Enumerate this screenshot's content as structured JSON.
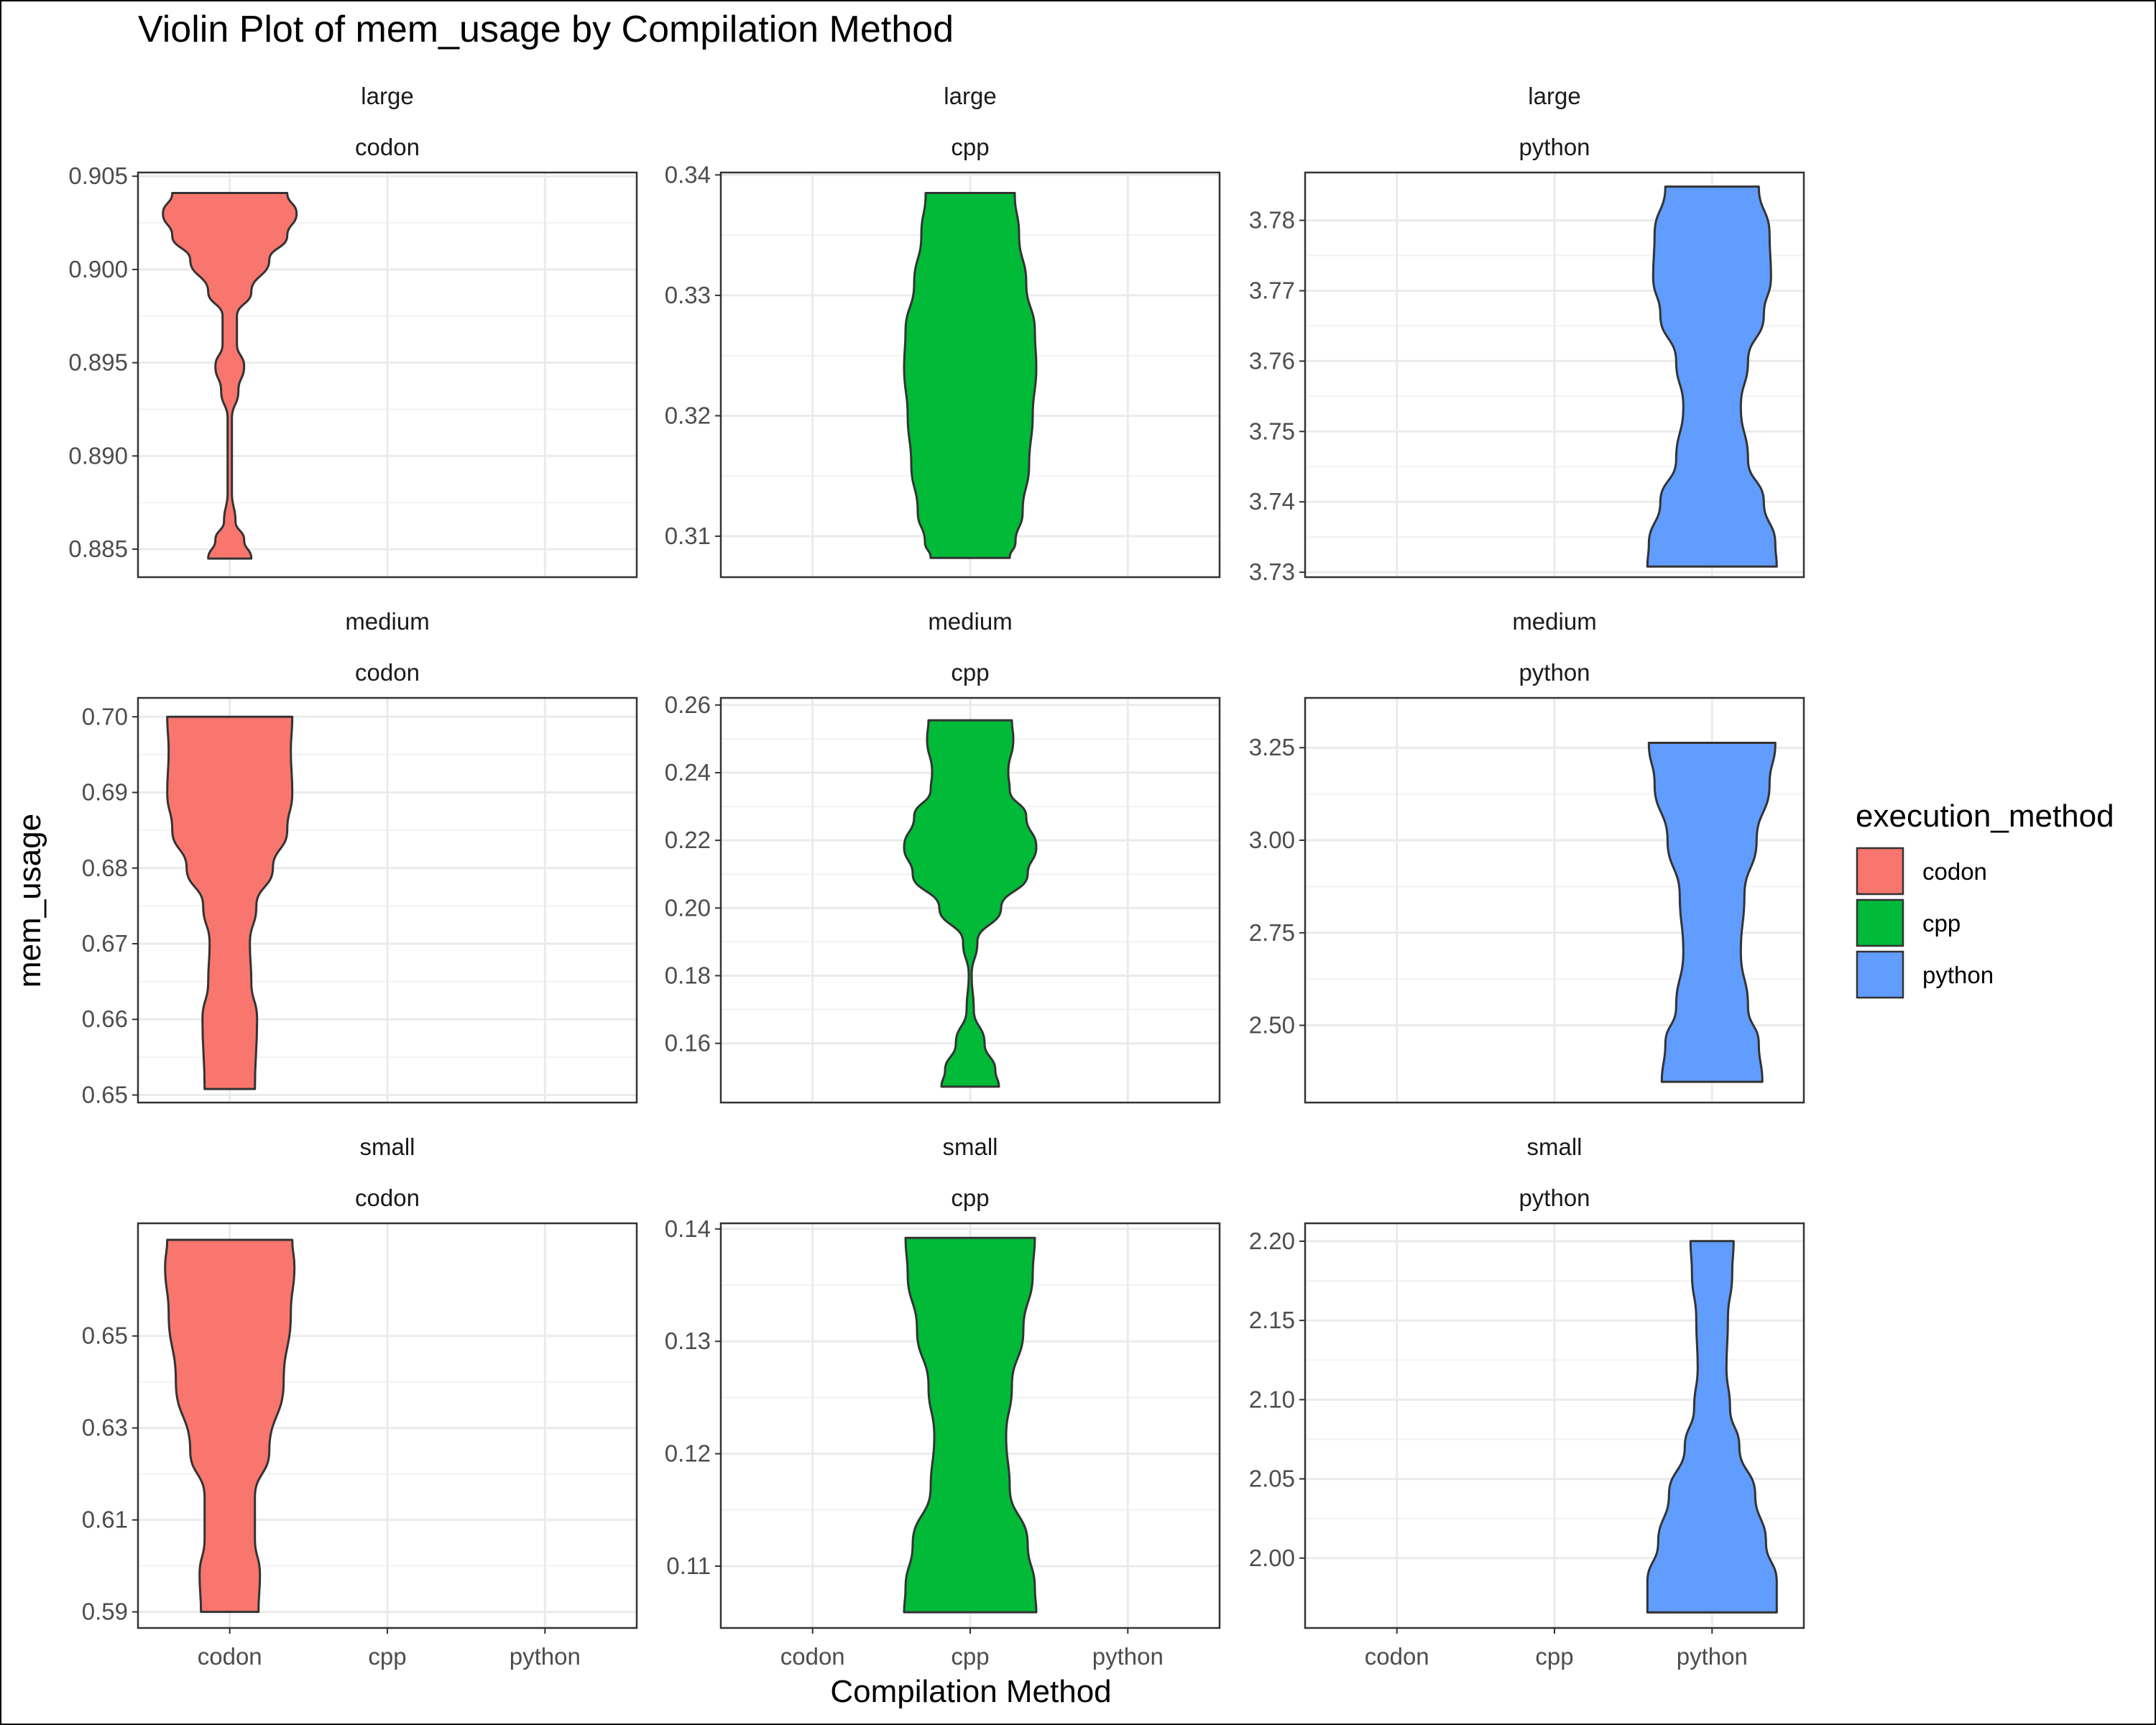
{
  "chart_data": {
    "type": "violin",
    "title": "Violin Plot of mem_usage by Compilation Method",
    "xlabel": "Compilation Method",
    "ylabel": "mem_usage",
    "categories": [
      "codon",
      "cpp",
      "python"
    ],
    "legend": {
      "title": "execution_method",
      "placement": "right",
      "entries": [
        {
          "label": "codon",
          "color": "#F8766D"
        },
        {
          "label": "cpp",
          "color": "#00BA38"
        },
        {
          "label": "python",
          "color": "#619CFF"
        }
      ]
    },
    "grid": true,
    "panels": [
      {
        "size": "large",
        "method": "codon",
        "ylim": [
          0.8835,
          0.9052
        ],
        "ticks": [
          {
            "v": 0.885,
            "t": "0.885"
          },
          {
            "v": 0.89,
            "t": "0.890"
          },
          {
            "v": 0.895,
            "t": "0.895"
          },
          {
            "v": 0.9,
            "t": "0.900"
          },
          {
            "v": 0.905,
            "t": "0.905"
          }
        ],
        "min": 0.8845,
        "max": 0.9041,
        "density": [
          [
            0.8845,
            0.3
          ],
          [
            0.8855,
            0.2
          ],
          [
            0.8865,
            0.08
          ],
          [
            0.888,
            0.03
          ],
          [
            0.892,
            0.03
          ],
          [
            0.8935,
            0.12
          ],
          [
            0.8948,
            0.2
          ],
          [
            0.896,
            0.1
          ],
          [
            0.8975,
            0.1
          ],
          [
            0.8988,
            0.3
          ],
          [
            0.9005,
            0.55
          ],
          [
            0.9018,
            0.8
          ],
          [
            0.903,
            0.93
          ],
          [
            0.9041,
            0.8
          ]
        ]
      },
      {
        "size": "large",
        "method": "cpp",
        "ylim": [
          0.3066,
          0.3402
        ],
        "ticks": [
          {
            "v": 0.31,
            "t": "0.31"
          },
          {
            "v": 0.32,
            "t": "0.32"
          },
          {
            "v": 0.33,
            "t": "0.33"
          },
          {
            "v": 0.34,
            "t": "0.34"
          }
        ],
        "min": 0.3082,
        "max": 0.3385,
        "density": [
          [
            0.3082,
            0.55
          ],
          [
            0.3095,
            0.63
          ],
          [
            0.312,
            0.73
          ],
          [
            0.316,
            0.82
          ],
          [
            0.32,
            0.87
          ],
          [
            0.324,
            0.92
          ],
          [
            0.327,
            0.9
          ],
          [
            0.331,
            0.78
          ],
          [
            0.335,
            0.68
          ],
          [
            0.3385,
            0.62
          ]
        ]
      },
      {
        "size": "large",
        "method": "python",
        "ylim": [
          3.7293,
          3.7868
        ],
        "ticks": [
          {
            "v": 3.73,
            "t": "3.73"
          },
          {
            "v": 3.74,
            "t": "3.74"
          },
          {
            "v": 3.75,
            "t": "3.75"
          },
          {
            "v": 3.76,
            "t": "3.76"
          },
          {
            "v": 3.77,
            "t": "3.77"
          },
          {
            "v": 3.78,
            "t": "3.78"
          }
        ],
        "min": 3.7308,
        "max": 3.7848,
        "density": [
          [
            3.7308,
            0.9
          ],
          [
            3.734,
            0.88
          ],
          [
            3.74,
            0.72
          ],
          [
            3.746,
            0.5
          ],
          [
            3.7535,
            0.4
          ],
          [
            3.76,
            0.5
          ],
          [
            3.7665,
            0.72
          ],
          [
            3.772,
            0.82
          ],
          [
            3.778,
            0.8
          ],
          [
            3.7848,
            0.65
          ]
        ]
      },
      {
        "size": "medium",
        "method": "codon",
        "ylim": [
          0.649,
          0.7025
        ],
        "ticks": [
          {
            "v": 0.65,
            "t": "0.65"
          },
          {
            "v": 0.66,
            "t": "0.66"
          },
          {
            "v": 0.67,
            "t": "0.67"
          },
          {
            "v": 0.68,
            "t": "0.68"
          },
          {
            "v": 0.69,
            "t": "0.69"
          },
          {
            "v": 0.7,
            "t": "0.70"
          }
        ],
        "min": 0.6508,
        "max": 0.7,
        "density": [
          [
            0.6508,
            0.35
          ],
          [
            0.66,
            0.38
          ],
          [
            0.665,
            0.3
          ],
          [
            0.67,
            0.28
          ],
          [
            0.675,
            0.37
          ],
          [
            0.68,
            0.6
          ],
          [
            0.685,
            0.8
          ],
          [
            0.69,
            0.87
          ],
          [
            0.6955,
            0.85
          ],
          [
            0.7,
            0.87
          ]
        ]
      },
      {
        "size": "medium",
        "method": "cpp",
        "ylim": [
          0.1425,
          0.2621
        ],
        "ticks": [
          {
            "v": 0.16,
            "t": "0.16"
          },
          {
            "v": 0.18,
            "t": "0.18"
          },
          {
            "v": 0.2,
            "t": "0.20"
          },
          {
            "v": 0.22,
            "t": "0.22"
          },
          {
            "v": 0.24,
            "t": "0.24"
          },
          {
            "v": 0.26,
            "t": "0.26"
          }
        ],
        "min": 0.1472,
        "max": 0.2555,
        "density": [
          [
            0.1472,
            0.4
          ],
          [
            0.152,
            0.35
          ],
          [
            0.16,
            0.2
          ],
          [
            0.17,
            0.05
          ],
          [
            0.18,
            0.02
          ],
          [
            0.19,
            0.1
          ],
          [
            0.2,
            0.43
          ],
          [
            0.21,
            0.8
          ],
          [
            0.218,
            0.92
          ],
          [
            0.227,
            0.78
          ],
          [
            0.235,
            0.55
          ],
          [
            0.24,
            0.53
          ],
          [
            0.25,
            0.6
          ],
          [
            0.2555,
            0.58
          ]
        ]
      },
      {
        "size": "medium",
        "method": "python",
        "ylim": [
          2.2914,
          3.3844
        ],
        "ticks": [
          {
            "v": 2.5,
            "t": "2.50"
          },
          {
            "v": 2.75,
            "t": "2.75"
          },
          {
            "v": 3.0,
            "t": "3.00"
          },
          {
            "v": 3.25,
            "t": "3.25"
          }
        ],
        "min": 2.3475,
        "max": 3.2631,
        "density": [
          [
            2.3475,
            0.7
          ],
          [
            2.45,
            0.65
          ],
          [
            2.55,
            0.5
          ],
          [
            2.7,
            0.4
          ],
          [
            2.85,
            0.45
          ],
          [
            3.0,
            0.62
          ],
          [
            3.15,
            0.8
          ],
          [
            3.2631,
            0.88
          ]
        ]
      },
      {
        "size": "small",
        "method": "codon",
        "ylim": [
          0.5865,
          0.6745
        ],
        "ticks": [
          {
            "v": 0.59,
            "t": "0.59"
          },
          {
            "v": 0.61,
            "t": "0.61"
          },
          {
            "v": 0.63,
            "t": "0.63"
          },
          {
            "v": 0.65,
            "t": "0.65"
          }
        ],
        "min": 0.59,
        "max": 0.6709,
        "density": [
          [
            0.59,
            0.4
          ],
          [
            0.598,
            0.42
          ],
          [
            0.606,
            0.35
          ],
          [
            0.615,
            0.35
          ],
          [
            0.625,
            0.55
          ],
          [
            0.64,
            0.75
          ],
          [
            0.655,
            0.85
          ],
          [
            0.665,
            0.9
          ],
          [
            0.6709,
            0.87
          ]
        ]
      },
      {
        "size": "small",
        "method": "cpp",
        "ylim": [
          0.1045,
          0.1405
        ],
        "ticks": [
          {
            "v": 0.11,
            "t": "0.11"
          },
          {
            "v": 0.12,
            "t": "0.12"
          },
          {
            "v": 0.13,
            "t": "0.13"
          },
          {
            "v": 0.14,
            "t": "0.14"
          }
        ],
        "min": 0.1059,
        "max": 0.1392,
        "density": [
          [
            0.1059,
            0.92
          ],
          [
            0.108,
            0.9
          ],
          [
            0.112,
            0.8
          ],
          [
            0.117,
            0.55
          ],
          [
            0.1215,
            0.5
          ],
          [
            0.126,
            0.58
          ],
          [
            0.131,
            0.74
          ],
          [
            0.136,
            0.87
          ],
          [
            0.1392,
            0.9
          ]
        ]
      },
      {
        "size": "small",
        "method": "python",
        "ylim": [
          1.9559,
          2.2113
        ],
        "ticks": [
          {
            "v": 2.0,
            "t": "2.00"
          },
          {
            "v": 2.05,
            "t": "2.05"
          },
          {
            "v": 2.1,
            "t": "2.10"
          },
          {
            "v": 2.15,
            "t": "2.15"
          },
          {
            "v": 2.2,
            "t": "2.20"
          }
        ],
        "min": 1.9657,
        "max": 2.2001,
        "density": [
          [
            1.9657,
            0.9
          ],
          [
            1.985,
            0.9
          ],
          [
            2.01,
            0.75
          ],
          [
            2.04,
            0.6
          ],
          [
            2.07,
            0.38
          ],
          [
            2.095,
            0.25
          ],
          [
            2.12,
            0.2
          ],
          [
            2.15,
            0.22
          ],
          [
            2.18,
            0.28
          ],
          [
            2.2001,
            0.3
          ]
        ]
      }
    ]
  }
}
